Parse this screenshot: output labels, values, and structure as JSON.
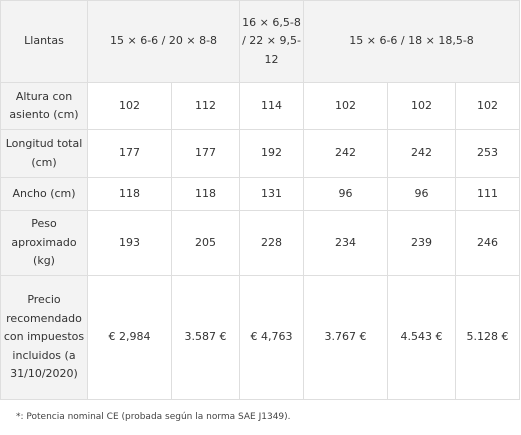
{
  "llantas": {
    "label": "Llantas",
    "values": [
      "15 × 6-6 / 20 × 8-8",
      "16 × 6,5-8 / 22 × 9,5-12",
      "15 × 6-6 / 18 × 18,5-8"
    ]
  },
  "rows": [
    {
      "label": "Altura con asiento (cm)",
      "values": [
        "102",
        "112",
        "114",
        "102",
        "102",
        "102"
      ]
    },
    {
      "label": "Longitud total (cm)",
      "values": [
        "177",
        "177",
        "192",
        "242",
        "242",
        "253"
      ]
    },
    {
      "label": "Ancho (cm)",
      "values": [
        "118",
        "118",
        "131",
        "96",
        "96",
        "111"
      ]
    },
    {
      "label": "Peso aproximado (kg)",
      "values": [
        "193",
        "205",
        "228",
        "234",
        "239",
        "246"
      ]
    },
    {
      "label": "Precio recomendado con impuestos incluidos (a 31/10/2020)",
      "values": [
        "€ 2,984",
        "3.587 €",
        "€ 4,763",
        "3.767 €",
        "4.543 €",
        "5.128 €"
      ]
    }
  ],
  "footnote": "*: Potencia nominal CE (probada según la norma SAE J1349)."
}
